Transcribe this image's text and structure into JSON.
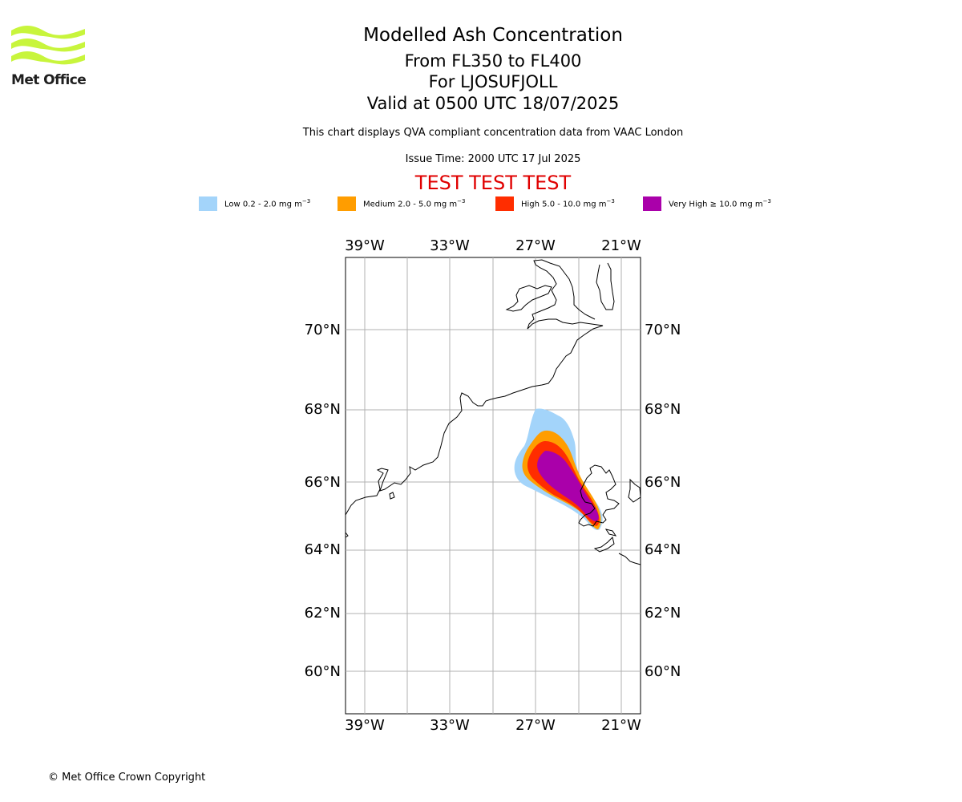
{
  "branding": {
    "logo_text": "Met Office",
    "logo_color": "#c8f53c"
  },
  "header": {
    "title": "Modelled Ash Concentration",
    "level_range": "From FL350 to FL400",
    "volcano": "For LJOSUFJOLL",
    "valid_time": "Valid at 0500 UTC 18/07/2025",
    "description": "This chart displays QVA compliant concentration data from VAAC London",
    "issue_time": "Issue Time: 2000 UTC 17 Jul 2025",
    "test_banner": "TEST TEST TEST"
  },
  "legend": [
    {
      "label": "Low 0.2 - 2.0 mg m",
      "superscript": "−3",
      "color": "#a3d4fa"
    },
    {
      "label": "Medium 2.0 - 5.0 mg m",
      "superscript": "−3",
      "color": "#ff9d00"
    },
    {
      "label": "High 5.0 - 10.0 mg m",
      "superscript": "−3",
      "color": "#ff2d00"
    },
    {
      "label": "Very High  ≥  10.0 mg m",
      "superscript": "−3",
      "color": "#aa00aa"
    }
  ],
  "map": {
    "longitude_labels": [
      "39°W",
      "33°W",
      "27°W",
      "21°W"
    ],
    "latitude_labels": [
      "70°N",
      "68°N",
      "66°N",
      "64°N",
      "62°N",
      "60°N"
    ],
    "gridlines": true,
    "coastline_color": "#000000",
    "grid_color": "#b0b0b0"
  },
  "footer": {
    "copyright": "© Met Office Crown Copyright"
  }
}
